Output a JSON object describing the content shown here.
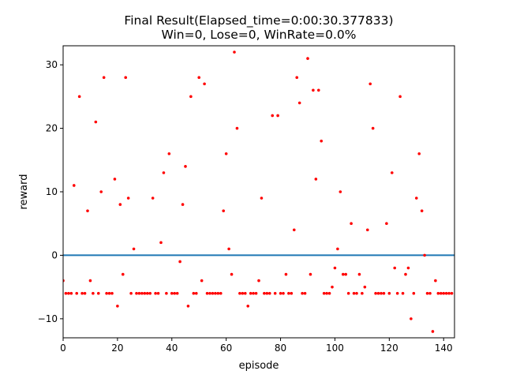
{
  "chart_data": {
    "type": "scatter",
    "title_line1": "Final Result(Elapsed_time=0:00:30.377833)",
    "title_line2": "Win=0, Lose=0, WinRate=0.0%",
    "xlabel": "episode",
    "ylabel": "reward",
    "xlim": [
      0,
      144
    ],
    "ylim": [
      -13,
      33
    ],
    "xticks": [
      0,
      20,
      40,
      60,
      80,
      100,
      120,
      140
    ],
    "yticks": [
      -10,
      0,
      10,
      20,
      30
    ],
    "hline": {
      "y": 0,
      "color": "#1f77b4"
    },
    "point_color": "#ff0000",
    "grid": false,
    "series": [
      {
        "values": [
          -4,
          -6,
          -6,
          -6,
          11,
          -6,
          25,
          -6,
          -6,
          7,
          -4,
          -6,
          21,
          -6,
          10,
          28,
          -6,
          -6,
          -6,
          12,
          -8,
          8,
          -3,
          28,
          9,
          -6,
          1,
          -6,
          -6,
          -6,
          -6,
          -6,
          -6,
          9,
          -6,
          -6,
          2,
          13,
          -6,
          16,
          -6,
          -6,
          -6,
          -1,
          8,
          14,
          -8,
          25,
          -6,
          -6,
          28,
          -4,
          27,
          -6,
          -6,
          -6,
          -6,
          -6,
          -6,
          7,
          16,
          1,
          -3,
          32,
          20,
          -6,
          -6,
          -6,
          -8,
          -6,
          -6,
          -6,
          -4,
          9,
          -6,
          -6,
          -6,
          22,
          -6,
          22,
          -6,
          -6,
          -3,
          -6,
          -6,
          4,
          28,
          24,
          -6,
          -6,
          31,
          -3,
          26,
          12,
          26,
          18,
          -6,
          -6,
          -6,
          -5,
          -2,
          1,
          10,
          -3,
          -3,
          -6,
          5,
          -6,
          -6,
          -3,
          -6,
          -5,
          4,
          27,
          20,
          -6,
          -6,
          -6,
          -6,
          5,
          -6,
          13,
          -2,
          -6,
          25,
          -6,
          -3,
          -2,
          -10,
          -6,
          9,
          16,
          7,
          0,
          -6,
          -6,
          -12,
          -4,
          -6,
          -6,
          -6,
          -6,
          -6,
          -6
        ]
      }
    ]
  }
}
